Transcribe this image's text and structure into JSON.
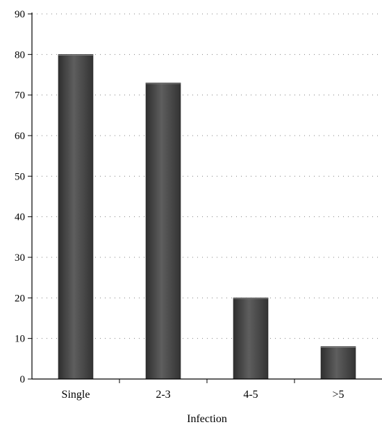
{
  "chart_data": {
    "type": "bar",
    "categories": [
      "Single",
      "2-3",
      "4-5",
      ">5"
    ],
    "values": [
      80,
      73,
      20,
      8
    ],
    "title": "",
    "xlabel": "Infection",
    "ylabel": "",
    "ylim": [
      0,
      90
    ],
    "yticks": [
      0,
      10,
      20,
      30,
      40,
      50,
      60,
      70,
      80,
      90
    ],
    "grid": true,
    "bar_color": "#4d4d4d",
    "grid_color": "#808080"
  }
}
